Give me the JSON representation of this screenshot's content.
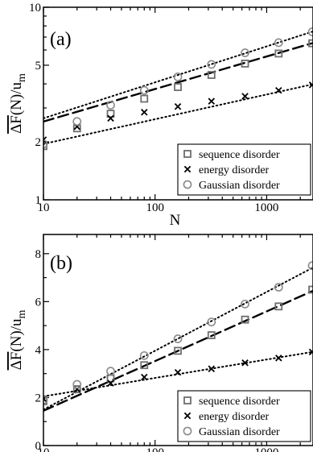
{
  "chart_data": [
    {
      "type": "scatter",
      "panel_label": "(a)",
      "xlabel": "N",
      "ylabel": "ΔF(N)/u_m",
      "xscale": "log",
      "yscale": "log",
      "xlim": [
        10,
        2600
      ],
      "ylim": [
        1,
        10
      ],
      "xticks": [
        10,
        100,
        1000
      ],
      "xticklabels": [
        "10",
        "100",
        "1000"
      ],
      "yticks": [
        1,
        2,
        5,
        10
      ],
      "yticklabels": [
        "1",
        "2",
        "5",
        "10"
      ],
      "grid": false,
      "legend_position": "bottom-right",
      "x": [
        10,
        20,
        40,
        80,
        160,
        320,
        640,
        1280,
        2560
      ],
      "series": [
        {
          "name": "sequence disorder",
          "marker": "square",
          "color": "#6e6e6e",
          "values": [
            1.9,
            2.35,
            2.8,
            3.35,
            3.85,
            4.45,
            5.1,
            5.75,
            6.5
          ]
        },
        {
          "name": "energy disorder",
          "marker": "x",
          "color": "#000000",
          "values": [
            2.05,
            2.4,
            2.65,
            2.85,
            3.05,
            3.25,
            3.45,
            3.7,
            3.95
          ]
        },
        {
          "name": "Gaussian disorder",
          "marker": "circle",
          "color": "#8a8a8a",
          "values": [
            1.95,
            2.55,
            3.1,
            3.7,
            4.35,
            5.05,
            5.8,
            6.55,
            7.45
          ]
        }
      ],
      "fits": [
        {
          "style": "dashed",
          "from": [
            10,
            2.55
          ],
          "to": [
            2560,
            6.6
          ]
        },
        {
          "style": "dotted",
          "from": [
            10,
            2.65
          ],
          "to": [
            2560,
            7.6
          ]
        },
        {
          "style": "dotted",
          "from": [
            10,
            1.95
          ],
          "to": [
            2560,
            4.0
          ]
        }
      ]
    },
    {
      "type": "scatter",
      "panel_label": "(b)",
      "xlabel": "N",
      "ylabel": "ΔF(N)/u_m",
      "xscale": "log",
      "yscale": "linear",
      "xlim": [
        10,
        2600
      ],
      "ylim": [
        0,
        8.8
      ],
      "xticks": [
        10,
        100,
        1000
      ],
      "xticklabels": [
        "10",
        "100",
        "1000"
      ],
      "yticks": [
        0,
        2,
        4,
        6,
        8
      ],
      "yticklabels": [
        "0",
        "2",
        "4",
        "6",
        "8"
      ],
      "grid": false,
      "legend_position": "bottom-right",
      "x": [
        10,
        20,
        40,
        80,
        160,
        320,
        640,
        1280,
        2560
      ],
      "series": [
        {
          "name": "sequence disorder",
          "marker": "square",
          "color": "#6e6e6e",
          "values": [
            1.85,
            2.35,
            2.8,
            3.35,
            3.95,
            4.6,
            5.25,
            5.8,
            6.5
          ]
        },
        {
          "name": "energy disorder",
          "marker": "x",
          "color": "#000000",
          "values": [
            1.95,
            2.35,
            2.6,
            2.85,
            3.05,
            3.2,
            3.45,
            3.65,
            3.9
          ]
        },
        {
          "name": "Gaussian disorder",
          "marker": "circle",
          "color": "#8a8a8a",
          "values": [
            1.9,
            2.55,
            3.1,
            3.75,
            4.45,
            5.15,
            5.9,
            6.6,
            7.5
          ]
        }
      ],
      "fits": [
        {
          "style": "dashed",
          "from": [
            10,
            1.45
          ],
          "to": [
            2560,
            6.55
          ]
        },
        {
          "style": "dotted",
          "from": [
            10,
            1.5
          ],
          "to": [
            2560,
            7.55
          ]
        },
        {
          "style": "dotted",
          "from": [
            10,
            2.05
          ],
          "to": [
            2560,
            3.9
          ]
        }
      ]
    }
  ]
}
